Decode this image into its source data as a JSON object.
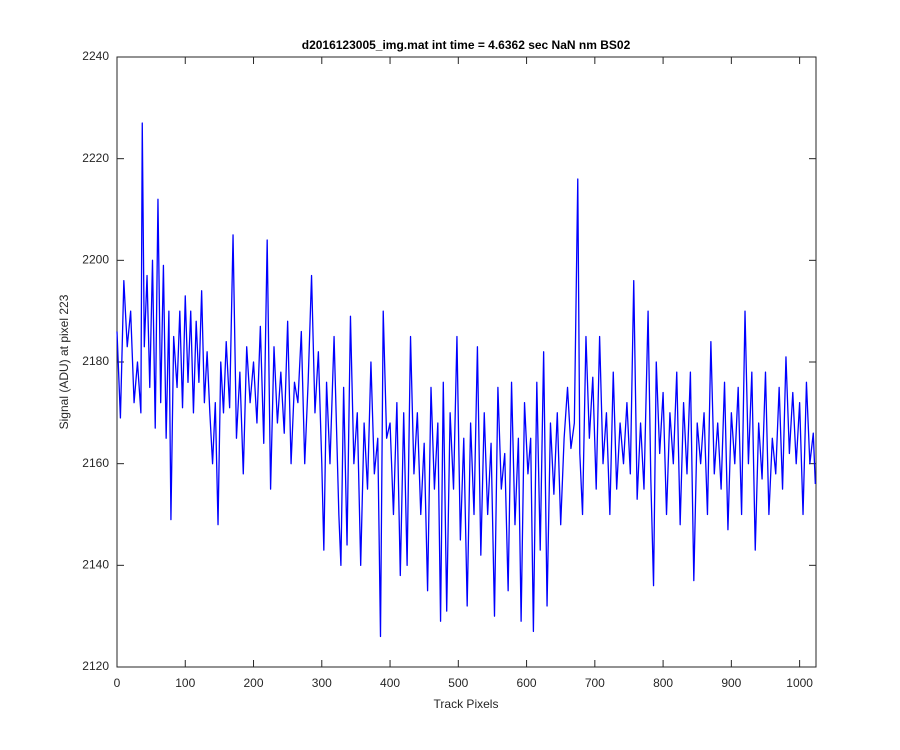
{
  "chart_data": {
    "type": "line",
    "title": "d2016123005_img.mat int time = 4.6362 sec  NaN nm BS02",
    "x_label": "Track Pixels",
    "y_label": "Signal (ADU) at pixel 223",
    "color": "#0000ff",
    "xlim": [
      0,
      1024
    ],
    "xticks": [
      0,
      100,
      200,
      300,
      400,
      500,
      600,
      700,
      800,
      900,
      1000
    ],
    "ylim": [
      2120,
      2240
    ],
    "yticks": [
      2120,
      2140,
      2160,
      2180,
      2200,
      2220,
      2240
    ],
    "x": [
      0,
      5,
      10,
      15,
      20,
      25,
      30,
      35,
      37,
      40,
      44,
      48,
      52,
      56,
      60,
      64,
      68,
      72,
      76,
      79,
      83,
      88,
      92,
      96,
      100,
      104,
      108,
      112,
      116,
      120,
      124,
      128,
      132,
      136,
      140,
      144,
      148,
      152,
      156,
      160,
      165,
      170,
      175,
      180,
      185,
      190,
      195,
      200,
      205,
      210,
      215,
      220,
      225,
      230,
      235,
      240,
      245,
      250,
      255,
      260,
      265,
      270,
      275,
      280,
      285,
      290,
      295,
      300,
      303,
      307,
      312,
      318,
      325,
      328,
      332,
      337,
      342,
      347,
      352,
      357,
      362,
      367,
      372,
      377,
      382,
      386,
      390,
      395,
      400,
      405,
      410,
      415,
      420,
      425,
      430,
      435,
      440,
      445,
      450,
      455,
      460,
      465,
      470,
      474,
      478,
      483,
      488,
      493,
      498,
      503,
      508,
      513,
      518,
      523,
      528,
      533,
      538,
      543,
      548,
      553,
      558,
      563,
      568,
      573,
      578,
      583,
      588,
      592,
      597,
      602,
      606,
      610,
      615,
      620,
      625,
      630,
      635,
      640,
      645,
      650,
      655,
      660,
      665,
      670,
      675,
      678,
      682,
      687,
      692,
      697,
      702,
      707,
      712,
      717,
      722,
      727,
      732,
      737,
      742,
      747,
      752,
      757,
      762,
      767,
      772,
      778,
      782,
      786,
      790,
      795,
      800,
      805,
      810,
      815,
      820,
      825,
      830,
      835,
      840,
      845,
      850,
      855,
      860,
      865,
      870,
      875,
      880,
      885,
      890,
      895,
      900,
      905,
      910,
      915,
      920,
      925,
      930,
      935,
      940,
      945,
      950,
      955,
      960,
      965,
      970,
      975,
      980,
      985,
      990,
      995,
      1000,
      1005,
      1010,
      1015,
      1020,
      1023
    ],
    "values": [
      2186,
      2169,
      2196,
      2183,
      2190,
      2172,
      2180,
      2170,
      2227,
      2183,
      2197,
      2175,
      2200,
      2167,
      2212,
      2172,
      2199,
      2165,
      2190,
      2149,
      2185,
      2175,
      2190,
      2171,
      2193,
      2176,
      2190,
      2170,
      2188,
      2176,
      2194,
      2172,
      2182,
      2170,
      2160,
      2172,
      2148,
      2180,
      2170,
      2184,
      2171,
      2205,
      2165,
      2178,
      2158,
      2183,
      2172,
      2180,
      2168,
      2187,
      2164,
      2204,
      2155,
      2183,
      2168,
      2178,
      2166,
      2188,
      2160,
      2176,
      2172,
      2186,
      2160,
      2176,
      2197,
      2170,
      2182,
      2160,
      2143,
      2176,
      2160,
      2185,
      2150,
      2140,
      2175,
      2144,
      2189,
      2160,
      2170,
      2140,
      2168,
      2155,
      2180,
      2158,
      2165,
      2126,
      2190,
      2165,
      2168,
      2150,
      2172,
      2138,
      2170,
      2140,
      2185,
      2158,
      2170,
      2150,
      2164,
      2135,
      2175,
      2155,
      2168,
      2129,
      2176,
      2131,
      2170,
      2155,
      2185,
      2145,
      2165,
      2132,
      2168,
      2150,
      2183,
      2142,
      2170,
      2150,
      2164,
      2130,
      2175,
      2155,
      2162,
      2135,
      2176,
      2148,
      2165,
      2129,
      2172,
      2158,
      2165,
      2127,
      2176,
      2143,
      2182,
      2132,
      2168,
      2154,
      2170,
      2148,
      2165,
      2175,
      2163,
      2168,
      2216,
      2162,
      2150,
      2185,
      2165,
      2177,
      2155,
      2185,
      2160,
      2170,
      2150,
      2178,
      2155,
      2168,
      2160,
      2172,
      2158,
      2196,
      2153,
      2168,
      2155,
      2190,
      2157,
      2136,
      2180,
      2162,
      2174,
      2150,
      2170,
      2160,
      2178,
      2148,
      2172,
      2158,
      2178,
      2137,
      2168,
      2160,
      2170,
      2150,
      2184,
      2158,
      2168,
      2155,
      2176,
      2147,
      2170,
      2160,
      2175,
      2150,
      2190,
      2160,
      2178,
      2143,
      2168,
      2157,
      2178,
      2150,
      2165,
      2158,
      2175,
      2155,
      2181,
      2162,
      2174,
      2160,
      2172,
      2150,
      2176,
      2160,
      2166,
      2156
    ]
  }
}
